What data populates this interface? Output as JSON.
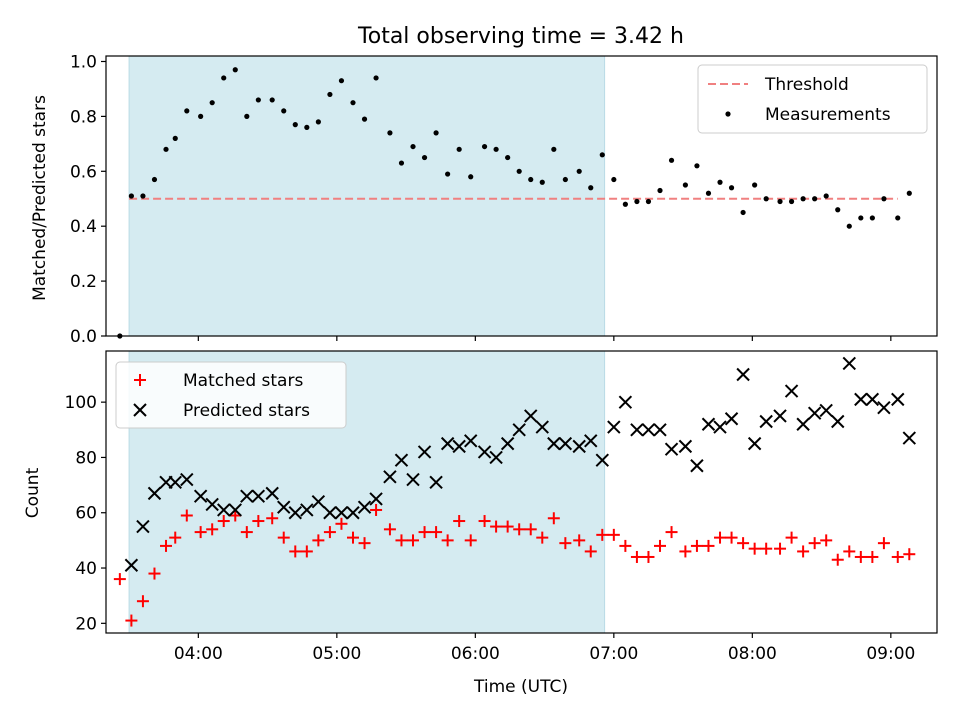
{
  "chart_data": [
    {
      "type": "scatter",
      "title": "Total observing time = 3.42 h",
      "xlabel": "",
      "ylabel": "Matched/Predicted stars",
      "xlim": [
        "03:20",
        "09:20"
      ],
      "ylim": [
        0,
        1.02
      ],
      "yticks": [
        0.0,
        0.2,
        0.4,
        0.6,
        0.8,
        1.0
      ],
      "ytick_labels": [
        "0.0",
        "0.2",
        "0.4",
        "0.6",
        "0.8",
        "1.0"
      ],
      "xticks": [
        "04:00",
        "05:00",
        "06:00",
        "07:00",
        "08:00",
        "09:00"
      ],
      "shaded_interval": [
        "03:30",
        "06:56"
      ],
      "shaded_color": "#d5ebf1",
      "legend_position": "top-right",
      "threshold": {
        "name": "Threshold",
        "value": 0.5,
        "x_range": [
          "03:30",
          "09:03"
        ],
        "color": "#f08080",
        "style": "dashed"
      },
      "series": [
        {
          "name": "Measurements",
          "color": "#000000",
          "points": [
            [
              "03:26",
              0.0
            ],
            [
              "03:31",
              0.51
            ],
            [
              "03:36",
              0.51
            ],
            [
              "03:41",
              0.57
            ],
            [
              "03:46",
              0.68
            ],
            [
              "03:50",
              0.72
            ],
            [
              "03:55",
              0.82
            ],
            [
              "04:01",
              0.8
            ],
            [
              "04:06",
              0.85
            ],
            [
              "04:11",
              0.94
            ],
            [
              "04:16",
              0.97
            ],
            [
              "04:21",
              0.8
            ],
            [
              "04:26",
              0.86
            ],
            [
              "04:32",
              0.86
            ],
            [
              "04:37",
              0.82
            ],
            [
              "04:42",
              0.77
            ],
            [
              "04:47",
              0.76
            ],
            [
              "04:52",
              0.78
            ],
            [
              "04:57",
              0.88
            ],
            [
              "05:02",
              0.93
            ],
            [
              "05:07",
              0.85
            ],
            [
              "05:12",
              0.79
            ],
            [
              "05:17",
              0.94
            ],
            [
              "05:23",
              0.74
            ],
            [
              "05:28",
              0.63
            ],
            [
              "05:33",
              0.69
            ],
            [
              "05:38",
              0.65
            ],
            [
              "05:43",
              0.74
            ],
            [
              "05:48",
              0.59
            ],
            [
              "05:53",
              0.68
            ],
            [
              "05:58",
              0.58
            ],
            [
              "06:04",
              0.69
            ],
            [
              "06:09",
              0.68
            ],
            [
              "06:14",
              0.65
            ],
            [
              "06:19",
              0.6
            ],
            [
              "06:24",
              0.57
            ],
            [
              "06:29",
              0.56
            ],
            [
              "06:34",
              0.68
            ],
            [
              "06:39",
              0.57
            ],
            [
              "06:45",
              0.6
            ],
            [
              "06:50",
              0.54
            ],
            [
              "06:55",
              0.66
            ],
            [
              "07:00",
              0.57
            ],
            [
              "07:05",
              0.48
            ],
            [
              "07:10",
              0.49
            ],
            [
              "07:15",
              0.49
            ],
            [
              "07:20",
              0.53
            ],
            [
              "07:25",
              0.64
            ],
            [
              "07:31",
              0.55
            ],
            [
              "07:36",
              0.62
            ],
            [
              "07:41",
              0.52
            ],
            [
              "07:46",
              0.56
            ],
            [
              "07:51",
              0.54
            ],
            [
              "07:56",
              0.45
            ],
            [
              "08:01",
              0.55
            ],
            [
              "08:06",
              0.5
            ],
            [
              "08:12",
              0.49
            ],
            [
              "08:17",
              0.49
            ],
            [
              "08:22",
              0.5
            ],
            [
              "08:27",
              0.5
            ],
            [
              "08:32",
              0.51
            ],
            [
              "08:37",
              0.46
            ],
            [
              "08:42",
              0.4
            ],
            [
              "08:47",
              0.43
            ],
            [
              "08:52",
              0.43
            ],
            [
              "08:57",
              0.5
            ],
            [
              "09:03",
              0.43
            ],
            [
              "09:08",
              0.52
            ]
          ]
        }
      ]
    },
    {
      "type": "scatter",
      "title": "",
      "xlabel": "Time (UTC)",
      "ylabel": "Count",
      "xlim": [
        "03:20",
        "09:20"
      ],
      "ylim": [
        16.5,
        118.5
      ],
      "yticks": [
        20,
        40,
        60,
        80,
        100
      ],
      "ytick_labels": [
        "20",
        "40",
        "60",
        "80",
        "100"
      ],
      "xticks": [
        "04:00",
        "05:00",
        "06:00",
        "07:00",
        "08:00",
        "09:00"
      ],
      "xtick_labels": [
        "04:00",
        "05:00",
        "06:00",
        "07:00",
        "08:00",
        "09:00"
      ],
      "shaded_interval": [
        "03:30",
        "06:56"
      ],
      "shaded_color": "#d5ebf1",
      "legend_position": "top-left",
      "series": [
        {
          "name": "Matched stars",
          "marker": "plus",
          "color": "#ff0000",
          "points": [
            [
              "03:26",
              36
            ],
            [
              "03:31",
              21
            ],
            [
              "03:36",
              28
            ],
            [
              "03:41",
              38
            ],
            [
              "03:46",
              48
            ],
            [
              "03:50",
              51
            ],
            [
              "03:55",
              59
            ],
            [
              "04:01",
              53
            ],
            [
              "04:06",
              54
            ],
            [
              "04:11",
              57
            ],
            [
              "04:16",
              59
            ],
            [
              "04:21",
              53
            ],
            [
              "04:26",
              57
            ],
            [
              "04:32",
              58
            ],
            [
              "04:37",
              51
            ],
            [
              "04:42",
              46
            ],
            [
              "04:47",
              46
            ],
            [
              "04:52",
              50
            ],
            [
              "04:57",
              53
            ],
            [
              "05:02",
              56
            ],
            [
              "05:07",
              51
            ],
            [
              "05:12",
              49
            ],
            [
              "05:17",
              61
            ],
            [
              "05:23",
              54
            ],
            [
              "05:28",
              50
            ],
            [
              "05:33",
              50
            ],
            [
              "05:38",
              53
            ],
            [
              "05:43",
              53
            ],
            [
              "05:48",
              50
            ],
            [
              "05:53",
              57
            ],
            [
              "05:58",
              50
            ],
            [
              "06:04",
              57
            ],
            [
              "06:09",
              55
            ],
            [
              "06:14",
              55
            ],
            [
              "06:19",
              54
            ],
            [
              "06:24",
              54
            ],
            [
              "06:29",
              51
            ],
            [
              "06:34",
              58
            ],
            [
              "06:39",
              49
            ],
            [
              "06:45",
              50
            ],
            [
              "06:50",
              46
            ],
            [
              "06:55",
              52
            ],
            [
              "07:00",
              52
            ],
            [
              "07:05",
              48
            ],
            [
              "07:10",
              44
            ],
            [
              "07:15",
              44
            ],
            [
              "07:20",
              48
            ],
            [
              "07:25",
              53
            ],
            [
              "07:31",
              46
            ],
            [
              "07:36",
              48
            ],
            [
              "07:41",
              48
            ],
            [
              "07:46",
              51
            ],
            [
              "07:51",
              51
            ],
            [
              "07:56",
              49
            ],
            [
              "08:01",
              47
            ],
            [
              "08:06",
              47
            ],
            [
              "08:12",
              47
            ],
            [
              "08:17",
              51
            ],
            [
              "08:22",
              46
            ],
            [
              "08:27",
              49
            ],
            [
              "08:32",
              50
            ],
            [
              "08:37",
              43
            ],
            [
              "08:42",
              46
            ],
            [
              "08:47",
              44
            ],
            [
              "08:52",
              44
            ],
            [
              "08:57",
              49
            ],
            [
              "09:03",
              44
            ],
            [
              "09:08",
              45
            ]
          ]
        },
        {
          "name": "Predicted stars",
          "marker": "x",
          "color": "#000000",
          "points": [
            [
              "03:31",
              41
            ],
            [
              "03:36",
              55
            ],
            [
              "03:41",
              67
            ],
            [
              "03:46",
              71
            ],
            [
              "03:50",
              71
            ],
            [
              "03:55",
              72
            ],
            [
              "04:01",
              66
            ],
            [
              "04:06",
              63
            ],
            [
              "04:11",
              61
            ],
            [
              "04:16",
              61
            ],
            [
              "04:21",
              66
            ],
            [
              "04:26",
              66
            ],
            [
              "04:32",
              67
            ],
            [
              "04:37",
              62
            ],
            [
              "04:42",
              60
            ],
            [
              "04:47",
              61
            ],
            [
              "04:52",
              64
            ],
            [
              "04:57",
              60
            ],
            [
              "05:02",
              60
            ],
            [
              "05:07",
              60
            ],
            [
              "05:12",
              62
            ],
            [
              "05:17",
              65
            ],
            [
              "05:23",
              73
            ],
            [
              "05:28",
              79
            ],
            [
              "05:33",
              72
            ],
            [
              "05:38",
              82
            ],
            [
              "05:43",
              71
            ],
            [
              "05:48",
              85
            ],
            [
              "05:53",
              84
            ],
            [
              "05:58",
              86
            ],
            [
              "06:04",
              82
            ],
            [
              "06:09",
              80
            ],
            [
              "06:14",
              85
            ],
            [
              "06:19",
              90
            ],
            [
              "06:24",
              95
            ],
            [
              "06:29",
              91
            ],
            [
              "06:34",
              85
            ],
            [
              "06:39",
              85
            ],
            [
              "06:45",
              84
            ],
            [
              "06:50",
              86
            ],
            [
              "06:55",
              79
            ],
            [
              "07:00",
              91
            ],
            [
              "07:05",
              100
            ],
            [
              "07:10",
              90
            ],
            [
              "07:15",
              90
            ],
            [
              "07:20",
              90
            ],
            [
              "07:25",
              83
            ],
            [
              "07:31",
              84
            ],
            [
              "07:36",
              77
            ],
            [
              "07:41",
              92
            ],
            [
              "07:46",
              91
            ],
            [
              "07:51",
              94
            ],
            [
              "07:56",
              110
            ],
            [
              "08:01",
              85
            ],
            [
              "08:06",
              93
            ],
            [
              "08:12",
              95
            ],
            [
              "08:17",
              104
            ],
            [
              "08:22",
              92
            ],
            [
              "08:27",
              96
            ],
            [
              "08:32",
              97
            ],
            [
              "08:37",
              93
            ],
            [
              "08:42",
              114
            ],
            [
              "08:47",
              101
            ],
            [
              "08:52",
              101
            ],
            [
              "08:57",
              98
            ],
            [
              "09:03",
              101
            ],
            [
              "09:08",
              87
            ]
          ]
        }
      ]
    }
  ]
}
